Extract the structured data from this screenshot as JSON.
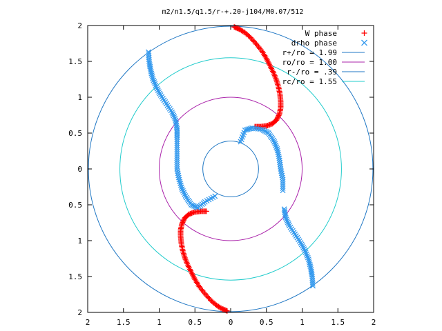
{
  "chart_data": {
    "type": "scatter",
    "title": "m2/n1.5/q1.5/r-+.20-j104/M0.07/512",
    "xlim": [
      -2,
      2
    ],
    "ylim": [
      -2,
      2
    ],
    "x_ticks": [
      -2,
      -1.5,
      -1,
      -0.5,
      0,
      0.5,
      1,
      1.5,
      2
    ],
    "y_ticks": [
      -2,
      -1.5,
      -1,
      -0.5,
      0,
      0.5,
      1,
      1.5,
      2
    ],
    "x_tick_labels": [
      "2",
      "1.5",
      "1",
      "0.5",
      "0",
      "0.5",
      "1",
      "1.5",
      "2"
    ],
    "y_tick_labels": [
      "2",
      "1.5",
      "1",
      "0.5",
      "0",
      "0.5",
      "1",
      "1.5",
      "2"
    ],
    "grid": false,
    "legend_position": "top-right",
    "legend": [
      {
        "label": "W phase",
        "symbol": "plus",
        "color": "#ff0000"
      },
      {
        "label": "drho phase",
        "symbol": "cross",
        "color": "#3399ee"
      },
      {
        "label": "r+/ro = 1.99",
        "symbol": "line",
        "color": "#1f77c4"
      },
      {
        "label": "ro/ro = 1.00",
        "symbol": "line",
        "color": "#aa22aa"
      },
      {
        "label": "r-/ro = .39",
        "symbol": "line",
        "color": "#1f77c4"
      },
      {
        "label": "rc/ro = 1.55",
        "symbol": "line",
        "color": "#22cccc"
      }
    ],
    "circles": [
      {
        "name": "r+/ro",
        "radius": 1.99,
        "color": "#1f77c4"
      },
      {
        "name": "ro/ro",
        "radius": 1.0,
        "color": "#aa22aa"
      },
      {
        "name": "r-/ro",
        "radius": 0.39,
        "color": "#1f77c4"
      },
      {
        "name": "rc/ro",
        "radius": 1.55,
        "color": "#22cccc"
      }
    ],
    "series": [
      {
        "name": "W phase",
        "color": "#ff0000",
        "points": [
          [
            0.05,
            1.98
          ],
          [
            0.12,
            1.95
          ],
          [
            0.2,
            1.9
          ],
          [
            0.28,
            1.83
          ],
          [
            0.36,
            1.74
          ],
          [
            0.44,
            1.64
          ],
          [
            0.5,
            1.54
          ],
          [
            0.55,
            1.44
          ],
          [
            0.6,
            1.34
          ],
          [
            0.64,
            1.24
          ],
          [
            0.67,
            1.14
          ],
          [
            0.69,
            1.04
          ],
          [
            0.7,
            0.94
          ],
          [
            0.7,
            0.85
          ],
          [
            0.68,
            0.76
          ],
          [
            0.64,
            0.68
          ],
          [
            0.58,
            0.63
          ],
          [
            0.5,
            0.6
          ],
          [
            0.42,
            0.59
          ],
          [
            0.34,
            0.59
          ],
          [
            -0.05,
            -1.98
          ],
          [
            -0.12,
            -1.95
          ],
          [
            -0.2,
            -1.9
          ],
          [
            -0.28,
            -1.83
          ],
          [
            -0.36,
            -1.74
          ],
          [
            -0.44,
            -1.64
          ],
          [
            -0.5,
            -1.54
          ],
          [
            -0.55,
            -1.44
          ],
          [
            -0.6,
            -1.34
          ],
          [
            -0.64,
            -1.24
          ],
          [
            -0.67,
            -1.14
          ],
          [
            -0.69,
            -1.04
          ],
          [
            -0.7,
            -0.94
          ],
          [
            -0.7,
            -0.85
          ],
          [
            -0.68,
            -0.76
          ],
          [
            -0.64,
            -0.68
          ],
          [
            -0.58,
            -0.63
          ],
          [
            -0.5,
            -0.6
          ],
          [
            -0.42,
            -0.59
          ],
          [
            -0.34,
            -0.59
          ]
        ]
      },
      {
        "name": "drho phase",
        "color": "#3399ee",
        "points": [
          [
            -1.15,
            1.63
          ],
          [
            -1.14,
            1.5
          ],
          [
            -1.12,
            1.38
          ],
          [
            -1.09,
            1.26
          ],
          [
            -1.04,
            1.14
          ],
          [
            -0.98,
            1.03
          ],
          [
            -0.9,
            0.91
          ],
          [
            -0.82,
            0.79
          ],
          [
            -0.77,
            0.68
          ],
          [
            -0.75,
            0.56
          ],
          [
            -0.75,
            0.44
          ],
          [
            -0.75,
            0.3
          ],
          [
            -0.75,
            0.15
          ],
          [
            -0.75,
            0.0
          ],
          [
            -0.72,
            -0.15
          ],
          [
            -0.68,
            -0.28
          ],
          [
            -0.62,
            -0.4
          ],
          [
            -0.55,
            -0.5
          ],
          [
            -0.46,
            -0.54
          ],
          [
            -0.36,
            -0.46
          ],
          [
            -0.22,
            -0.38
          ],
          [
            1.15,
            -1.63
          ],
          [
            1.14,
            -1.5
          ],
          [
            1.12,
            -1.38
          ],
          [
            1.09,
            -1.26
          ],
          [
            1.04,
            -1.14
          ],
          [
            0.98,
            -1.03
          ],
          [
            0.9,
            -0.91
          ],
          [
            0.82,
            -0.79
          ],
          [
            0.77,
            -0.68
          ],
          [
            0.75,
            -0.56
          ],
          [
            0.73,
            -0.3
          ],
          [
            0.73,
            -0.15
          ],
          [
            0.7,
            0.0
          ],
          [
            0.68,
            0.15
          ],
          [
            0.65,
            0.28
          ],
          [
            0.6,
            0.4
          ],
          [
            0.53,
            0.5
          ],
          [
            0.44,
            0.55
          ],
          [
            0.3,
            0.57
          ],
          [
            0.2,
            0.54
          ],
          [
            0.14,
            0.38
          ]
        ]
      }
    ]
  }
}
